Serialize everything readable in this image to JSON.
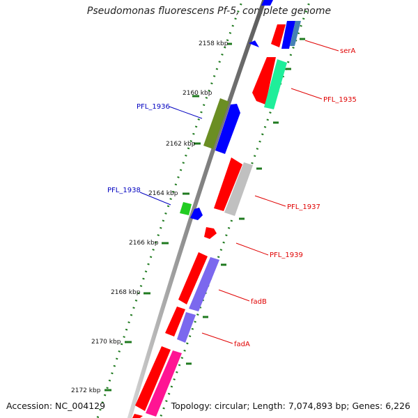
{
  "title": "Pseudomonas fluorescens Pf-5, complete genome",
  "footer": {
    "accession_label": "Accession:",
    "accession": "NC_004129",
    "topology_label": "Topology:",
    "topology": "circular;",
    "length_label": "Length:",
    "length": "7,074,893 bp;",
    "genes_label": "Genes:",
    "genes": "6,226"
  },
  "scale_labels": [
    "2158 kbp",
    "2160 kbp",
    "2162 kbp",
    "2164 kbp",
    "2166 kbp",
    "2168 kbp",
    "2170 kbp",
    "2172 kbp"
  ],
  "gene_labels": {
    "serA": "serA",
    "PFL_1935": "PFL_1935",
    "PFL_1936": "PFL_1936",
    "PFL_1937": "PFL_1937",
    "PFL_1938": "PFL_1938",
    "PFL_1939": "PFL_1939",
    "fadB": "fadB",
    "fadA": "fadA"
  },
  "colors": {
    "backbone": "#808080",
    "scale_ticks": "#1f7a1f",
    "label_forward": "#e00000",
    "label_reverse": "#0000c0",
    "cds_red": "#ff0000",
    "gene_blue": "#0000ff",
    "gene_green_light": "#1fee9a",
    "gene_olive": "#6b8e23",
    "gene_grey": "#c0c0c0",
    "gene_lime": "#22cc22",
    "gene_slate": "#7b68ee",
    "gene_magenta": "#ff1493",
    "gene_steel": "#4682b4"
  }
}
